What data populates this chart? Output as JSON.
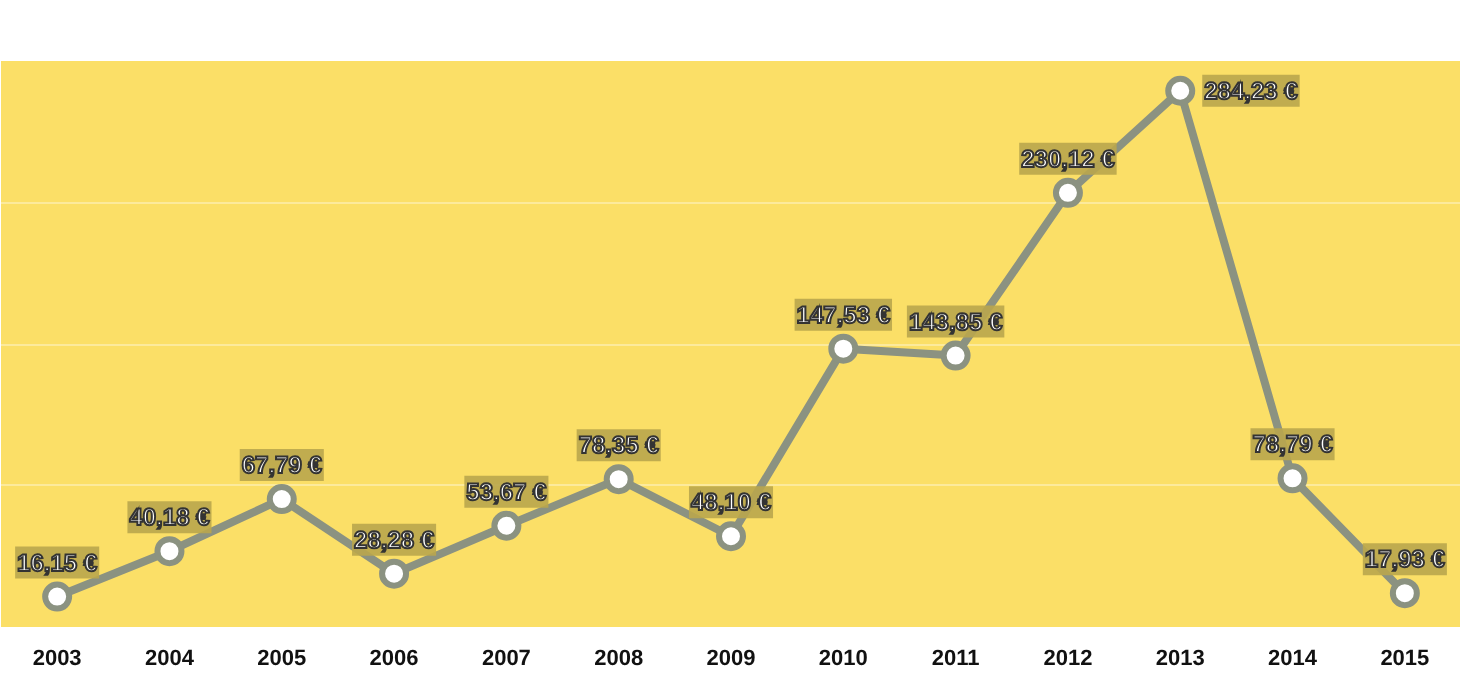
{
  "chart_data": {
    "type": "line",
    "categories": [
      "2003",
      "2004",
      "2005",
      "2006",
      "2007",
      "2008",
      "2009",
      "2010",
      "2011",
      "2012",
      "2013",
      "2014",
      "2015"
    ],
    "series": [
      {
        "color": "#8b9281",
        "values": [
          16.15,
          40.18,
          67.79,
          28.28,
          53.67,
          78.35,
          48.1,
          147.53,
          143.85,
          230.12,
          284.23,
          78.79,
          17.93
        ],
        "value_labels": [
          "16,15 €",
          "40,18 €",
          "67,79 €",
          "28,28 €",
          "53,67 €",
          "78,35 €",
          "48,10 €",
          "147,53 €",
          "143,85 €",
          "230,12 €",
          "284,23 €",
          "78,79 €",
          "17,93 €"
        ]
      }
    ],
    "ylim": [
      0,
      300
    ],
    "yticks": [
      {
        "value": 75,
        "label": null
      },
      {
        "value": 150,
        "label": null
      },
      {
        "value": 225,
        "label": null
      }
    ],
    "grid": "y",
    "tick_labels": "x",
    "marker": "circle",
    "line_style": "solid"
  }
}
